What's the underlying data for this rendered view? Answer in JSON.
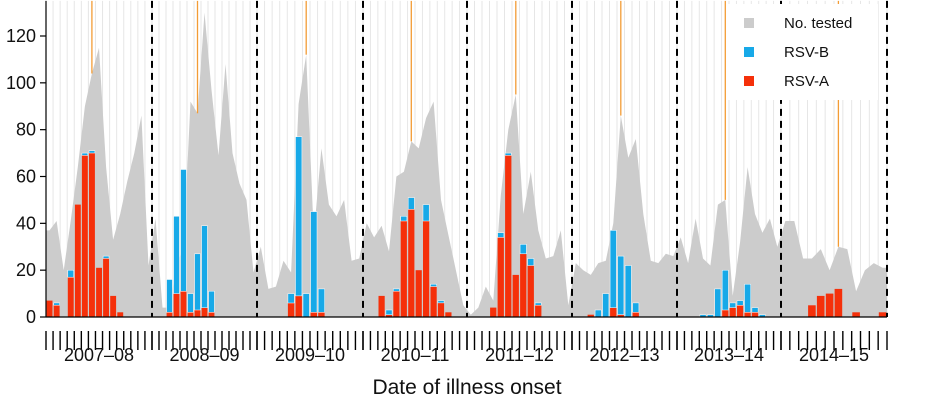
{
  "chart_data": {
    "type": "bar",
    "xlabel": "Date of illness onset",
    "ylabel": "",
    "ylim": [
      0,
      135
    ],
    "yticks": [
      0,
      20,
      40,
      60,
      80,
      100,
      120
    ],
    "grid": "vertical",
    "legend_position": "top-right",
    "colors": {
      "tested": "#cccccc",
      "rsv_b": "#17a9e8",
      "rsv_a": "#f5300a",
      "peak_line": "#f39c35",
      "divider": "#000000"
    },
    "seasons": [
      {
        "label": "2007–08",
        "tested": [
          37,
          41,
          20,
          41,
          64,
          90,
          104,
          115,
          64,
          33,
          44,
          58,
          70,
          86,
          22
        ],
        "rsv_a": [
          7,
          5,
          0,
          17,
          48,
          69,
          70,
          21,
          25,
          9,
          2,
          0,
          0,
          0,
          0
        ],
        "rsv_b": [
          0,
          1,
          0,
          3,
          0,
          1,
          1,
          0,
          1,
          0,
          0,
          0,
          0,
          0,
          0
        ],
        "peak_index": 6
      },
      {
        "label": "2008–09",
        "tested": [
          42,
          4,
          4,
          22,
          30,
          92,
          87,
          130,
          97,
          69,
          108,
          70,
          57,
          50,
          19
        ],
        "rsv_a": [
          0,
          0,
          2,
          10,
          11,
          2,
          3,
          4,
          2,
          0,
          0,
          0,
          0,
          0,
          0
        ],
        "rsv_b": [
          0,
          0,
          14,
          33,
          52,
          8,
          24,
          35,
          9,
          0,
          0,
          0,
          0,
          0,
          0
        ],
        "peak_index": 6
      },
      {
        "label": "2009–10",
        "tested": [
          30,
          12,
          13,
          24,
          19,
          91,
          112,
          35,
          72,
          48,
          43,
          50,
          24,
          25
        ],
        "rsv_a": [
          0,
          0,
          0,
          0,
          6,
          9,
          0,
          2,
          2,
          0,
          0,
          0,
          0,
          0
        ],
        "rsv_b": [
          0,
          0,
          0,
          0,
          4,
          68,
          10,
          43,
          10,
          0,
          0,
          0,
          0,
          0
        ],
        "peak_index": 6
      },
      {
        "label": "2010–11",
        "tested": [
          40,
          34,
          39,
          28,
          60,
          62,
          75,
          72,
          85,
          92,
          50,
          35,
          20,
          5
        ],
        "rsv_a": [
          0,
          0,
          9,
          1,
          11,
          41,
          46,
          20,
          41,
          13,
          6,
          2,
          0,
          0
        ],
        "rsv_b": [
          0,
          0,
          0,
          2,
          1,
          2,
          5,
          0,
          7,
          1,
          1,
          0,
          0,
          0
        ],
        "peak_index": 6
      },
      {
        "label": "2011–12",
        "tested": [
          1,
          4,
          13,
          7,
          52,
          80,
          95,
          44,
          62,
          37,
          25,
          26,
          37,
          5
        ],
        "rsv_a": [
          0,
          0,
          0,
          4,
          34,
          69,
          18,
          27,
          22,
          5,
          0,
          0,
          0,
          0
        ],
        "rsv_b": [
          0,
          0,
          0,
          0,
          2,
          1,
          0,
          4,
          3,
          1,
          0,
          0,
          0,
          0
        ],
        "peak_index": 6
      },
      {
        "label": "2012–13",
        "tested": [
          23,
          20,
          18,
          23,
          24,
          40,
          86,
          68,
          76,
          44,
          24,
          23,
          27,
          26
        ],
        "rsv_a": [
          0,
          0,
          1,
          0,
          0,
          4,
          1,
          0,
          2,
          0,
          0,
          0,
          0,
          0
        ],
        "rsv_b": [
          0,
          0,
          0,
          3,
          10,
          33,
          25,
          22,
          4,
          0,
          0,
          0,
          0,
          0
        ],
        "peak_index": 6
      },
      {
        "label": "2013–14",
        "tested": [
          34,
          23,
          42,
          25,
          22,
          48,
          50,
          9,
          32,
          64,
          44,
          36,
          42,
          30
        ],
        "rsv_a": [
          0,
          0,
          0,
          0,
          0,
          0,
          3,
          4,
          5,
          2,
          2,
          0,
          0,
          0
        ],
        "rsv_b": [
          0,
          0,
          0,
          1,
          1,
          12,
          17,
          2,
          2,
          12,
          2,
          1,
          0,
          0
        ],
        "peak_index": 6
      },
      {
        "label": "2014–15",
        "tested": [
          41,
          41,
          25,
          25,
          29,
          20,
          30,
          29,
          11,
          20,
          23,
          21
        ],
        "rsv_a": [
          0,
          0,
          0,
          5,
          9,
          10,
          12,
          0,
          2,
          0,
          0,
          2
        ],
        "rsv_b": [
          0,
          0,
          0,
          0,
          0,
          0,
          0,
          0,
          0,
          0,
          0,
          0
        ],
        "peak_index": 6
      }
    ],
    "legend": [
      {
        "key": "tested",
        "label": "No. tested"
      },
      {
        "key": "rsv_b",
        "label": "RSV-B"
      },
      {
        "key": "rsv_a",
        "label": "RSV-A"
      }
    ]
  }
}
